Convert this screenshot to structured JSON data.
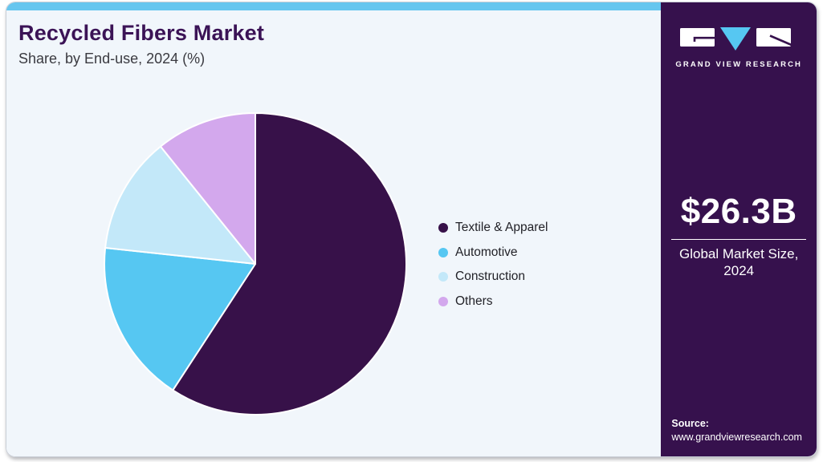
{
  "header": {
    "title": "Recycled Fibers Market",
    "subtitle": "Share, by End-use, 2024 (%)"
  },
  "chart_data": {
    "type": "pie",
    "title": "Recycled Fibers Market Share, by End-use, 2024 (%)",
    "unit": "%",
    "categories": [
      "Textile & Apparel",
      "Automotive",
      "Construction",
      "Others"
    ],
    "values": [
      59.2,
      17.5,
      12.5,
      10.8
    ],
    "colors": [
      "#371149",
      "#56c7f2",
      "#c3e8f9",
      "#d3a8ed"
    ],
    "start_angle_deg": 0,
    "direction": "clockwise",
    "legend_position": "right",
    "data_labels_shown": false
  },
  "sidebar": {
    "brand": "GRAND VIEW RESEARCH",
    "market_size": "$26.3B",
    "market_label_line1": "Global Market Size,",
    "market_label_line2": "2024",
    "source_label": "Source:",
    "source_url": "www.grandviewresearch.com"
  },
  "colors": {
    "accent_topbar": "#66c6ef",
    "panel_bg": "#f1f6fb",
    "sidebar_bg": "#36114d",
    "title_text": "#3b1356",
    "subtitle_text": "#3a3a40",
    "logo_triangle": "#56c7f2"
  }
}
